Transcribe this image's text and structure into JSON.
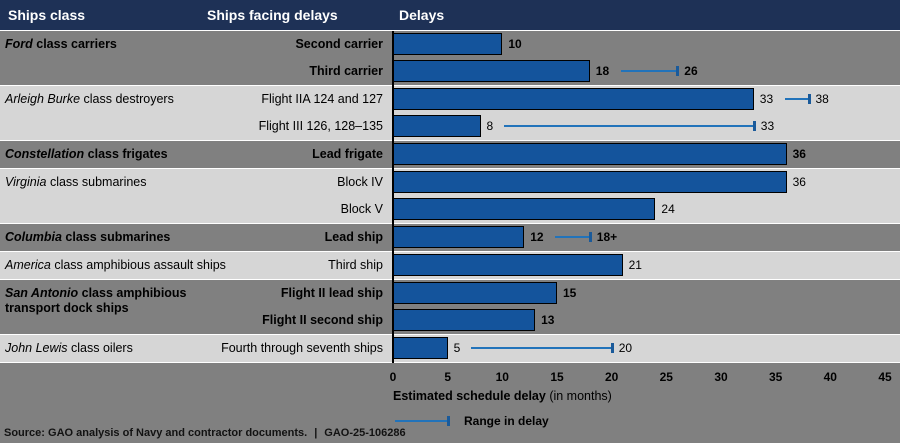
{
  "header": {
    "col1": "Ships class",
    "col2": "Ships facing delays",
    "col3": "Delays"
  },
  "chart_data": {
    "type": "bar",
    "title": "Delays",
    "xlabel_bold": "Estimated schedule delay",
    "xlabel_unit": " (in months)",
    "x_axis": {
      "ticks": [
        0,
        5,
        10,
        15,
        20,
        25,
        30,
        35,
        40,
        45
      ],
      "max": 45
    },
    "legend": {
      "label": "Range in delay"
    },
    "groups": [
      {
        "class_italic": "Ford",
        "class_rest": " class carriers",
        "shade": "dark",
        "rows": [
          {
            "ship": "Second carrier",
            "delay_months": 10,
            "delay_label": "10"
          },
          {
            "ship": "Third carrier",
            "delay_months": 18,
            "delay_label": "18",
            "range_max_months": 26,
            "range_max_label": "26"
          }
        ]
      },
      {
        "class_italic": "Arleigh Burke",
        "class_rest": " class destroyers",
        "shade": "light",
        "rows": [
          {
            "ship": "Flight IIA 124 and 127",
            "delay_months": 33,
            "delay_label": "33",
            "range_max_months": 38,
            "range_max_label": "38"
          },
          {
            "ship": "Flight III 126, 128–135",
            "delay_months": 8,
            "delay_label": "8",
            "range_max_months": 33,
            "range_max_label": "33"
          }
        ]
      },
      {
        "class_italic": "Constellation",
        "class_rest": " class frigates",
        "shade": "dark",
        "rows": [
          {
            "ship": "Lead frigate",
            "delay_months": 36,
            "delay_label": "36"
          }
        ]
      },
      {
        "class_italic": "Virginia",
        "class_rest": " class submarines",
        "shade": "light",
        "rows": [
          {
            "ship": "Block IV",
            "delay_months": 36,
            "delay_label": "36"
          },
          {
            "ship": "Block V",
            "delay_months": 24,
            "delay_label": "24"
          }
        ]
      },
      {
        "class_italic": "Columbia",
        "class_rest": " class submarines",
        "shade": "dark",
        "rows": [
          {
            "ship": "Lead ship",
            "delay_months": 12,
            "delay_label": "12",
            "range_max_months": 18,
            "range_max_label": "18+"
          }
        ]
      },
      {
        "class_italic": "America",
        "class_rest": " class amphibious assault ships",
        "shade": "light",
        "rows": [
          {
            "ship": "Third ship",
            "delay_months": 21,
            "delay_label": "21"
          }
        ]
      },
      {
        "class_italic": "San Antonio",
        "class_rest": " class amphibious",
        "class_line2": "transport dock ships",
        "shade": "dark",
        "rows": [
          {
            "ship": "Flight II lead ship",
            "delay_months": 15,
            "delay_label": "15"
          },
          {
            "ship": "Flight II second ship",
            "delay_months": 13,
            "delay_label": "13"
          }
        ]
      },
      {
        "class_italic": "John Lewis",
        "class_rest": " class oilers",
        "shade": "light",
        "rows": [
          {
            "ship": "Fourth through seventh ships",
            "delay_months": 5,
            "delay_label": "5",
            "range_max_months": 20,
            "range_max_label": "20"
          }
        ]
      }
    ]
  },
  "footer": {
    "source": "Source: GAO analysis of Navy and contractor documents.",
    "divider": "|",
    "report_id": "GAO-25-106286"
  },
  "colors": {
    "header_bg": "#1E3156",
    "header_text": "#FFFFFF",
    "row_dark": "#808080",
    "row_light": "#D6D6D6",
    "bar_fill": "#14549C",
    "bar_border": "#000000",
    "range_line": "#2273BA",
    "range_cap": "#1A5A9A",
    "baseline": "#000000",
    "text": "#000000"
  }
}
